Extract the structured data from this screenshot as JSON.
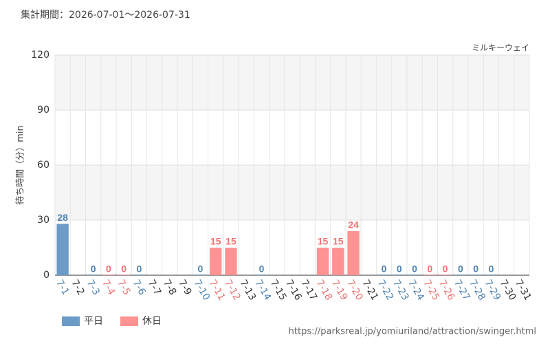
{
  "chart_data": {
    "type": "bar",
    "subtitle": "集計期間：2026-07-01～2026-07-31",
    "title": "ミルキーウェイ",
    "y_label": "待ち時間（分）min",
    "source": "https://parksreal.jp/yomiuriland/attraction/swinger.html",
    "categories": [
      "7-1",
      "7-2",
      "7-3",
      "7-4",
      "7-5",
      "7-6",
      "7-7",
      "7-8",
      "7-9",
      "7-10",
      "7-11",
      "7-12",
      "7-13",
      "7-14",
      "7-15",
      "7-16",
      "7-17",
      "7-18",
      "7-19",
      "7-20",
      "7-21",
      "7-22",
      "7-23",
      "7-24",
      "7-25",
      "7-26",
      "7-27",
      "7-28",
      "7-29",
      "7-30",
      "7-31"
    ],
    "series": [
      {
        "name": "平日",
        "color": "#6b9bc6",
        "label_color": "#4f82b0",
        "values": [
          28,
          null,
          0,
          null,
          null,
          0,
          null,
          null,
          null,
          0,
          null,
          null,
          null,
          0,
          null,
          null,
          null,
          null,
          null,
          null,
          null,
          0,
          0,
          0,
          null,
          null,
          0,
          0,
          0,
          null,
          null
        ]
      },
      {
        "name": "休日",
        "color": "#ff9393",
        "label_color": "#f07272",
        "values": [
          null,
          null,
          null,
          0,
          0,
          null,
          null,
          null,
          null,
          null,
          15,
          15,
          null,
          null,
          null,
          null,
          null,
          15,
          15,
          24,
          null,
          null,
          null,
          null,
          0,
          0,
          null,
          null,
          null,
          null,
          null
        ]
      }
    ],
    "ylim": [
      0,
      120
    ],
    "yticks": [
      0,
      30,
      60,
      90,
      120
    ],
    "grid": true,
    "legend": "bottom-left"
  }
}
